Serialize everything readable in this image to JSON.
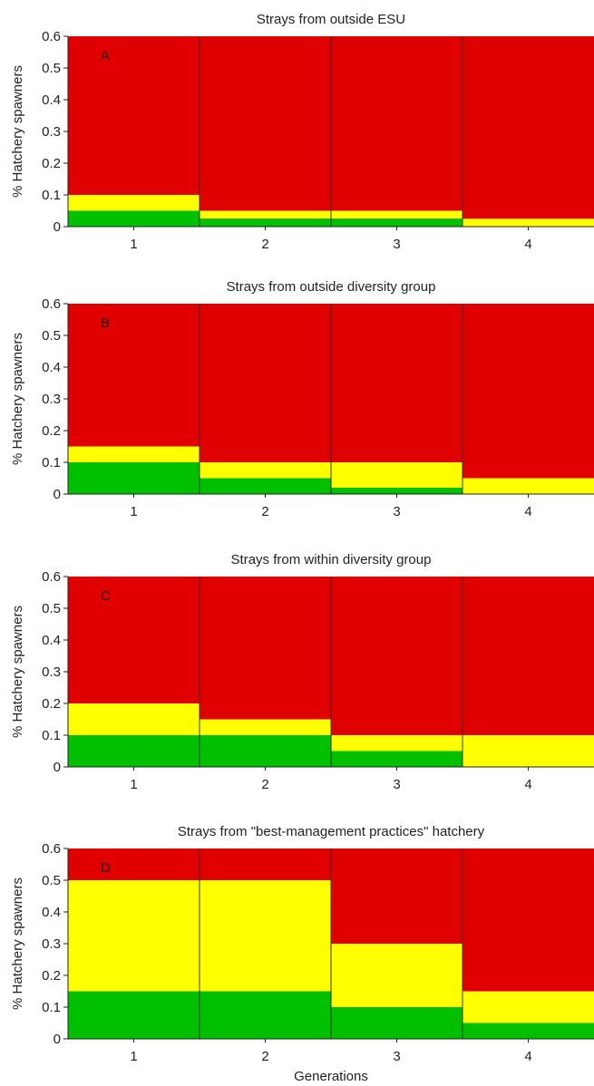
{
  "chart_data": [
    {
      "type": "bar",
      "title": "Strays from outside ESU",
      "panel_label": "A",
      "ylabel": "% Hatchery spawners",
      "xlabel": "",
      "categories": [
        "1",
        "2",
        "3",
        "4"
      ],
      "ylim": [
        0,
        0.6
      ],
      "yticks": [
        "0",
        "0.1",
        "0.2",
        "0.3",
        "0.4",
        "0.5",
        "0.6"
      ],
      "green_upper": [
        0.05,
        0.025,
        0.025,
        0
      ],
      "yellow_upper": [
        0.1,
        0.05,
        0.05,
        0.025
      ]
    },
    {
      "type": "bar",
      "title": "Strays from outside diversity group",
      "panel_label": "B",
      "ylabel": "% Hatchery spawners",
      "xlabel": "",
      "categories": [
        "1",
        "2",
        "3",
        "4"
      ],
      "ylim": [
        0,
        0.6
      ],
      "yticks": [
        "0",
        "0.1",
        "0.2",
        "0.3",
        "0.4",
        "0.5",
        "0.6"
      ],
      "green_upper": [
        0.1,
        0.05,
        0.02,
        0
      ],
      "yellow_upper": [
        0.15,
        0.1,
        0.1,
        0.05
      ]
    },
    {
      "type": "bar",
      "title": "Strays from within diversity group",
      "panel_label": "C",
      "ylabel": "% Hatchery spawners",
      "xlabel": "",
      "categories": [
        "1",
        "2",
        "3",
        "4"
      ],
      "ylim": [
        0,
        0.6
      ],
      "yticks": [
        "0",
        "0.1",
        "0.2",
        "0.3",
        "0.4",
        "0.5",
        "0.6"
      ],
      "green_upper": [
        0.1,
        0.1,
        0.05,
        0
      ],
      "yellow_upper": [
        0.2,
        0.15,
        0.1,
        0.1
      ]
    },
    {
      "type": "bar",
      "title": "Strays from \"best-management practices\" hatchery",
      "panel_label": "D",
      "ylabel": "% Hatchery spawners",
      "xlabel": "Generations",
      "categories": [
        "1",
        "2",
        "3",
        "4"
      ],
      "ylim": [
        0,
        0.6
      ],
      "yticks": [
        "0",
        "0.1",
        "0.2",
        "0.3",
        "0.4",
        "0.5",
        "0.6"
      ],
      "green_upper": [
        0.15,
        0.15,
        0.1,
        0.05
      ],
      "yellow_upper": [
        0.5,
        0.5,
        0.3,
        0.15
      ]
    }
  ],
  "colors": {
    "green": "#00c000",
    "yellow": "#ffff00",
    "red": "#e00000",
    "divider": "#333333"
  }
}
